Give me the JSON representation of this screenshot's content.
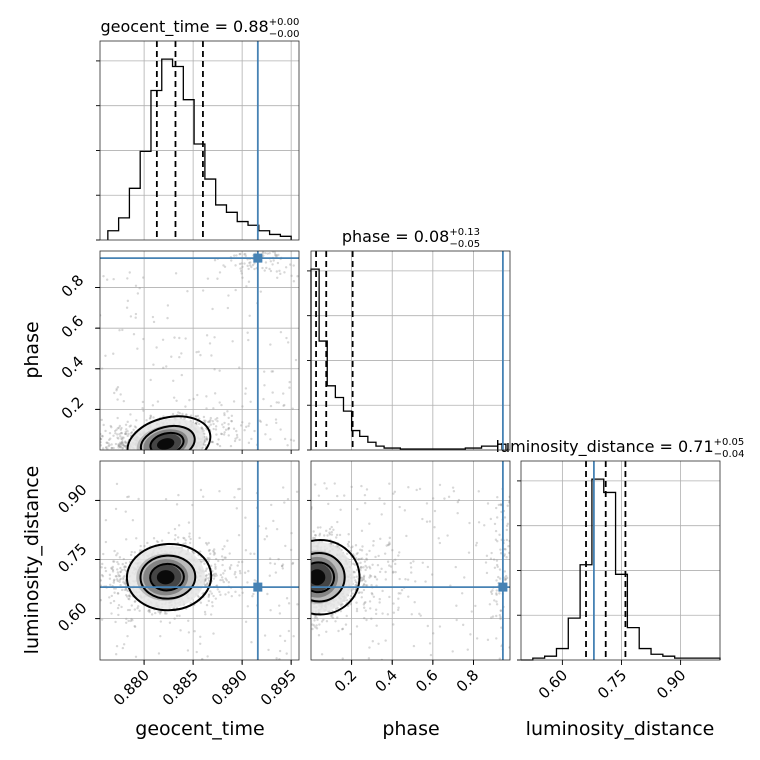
{
  "chart_data": {
    "type": "corner",
    "parameters": [
      "geocent_time",
      "phase",
      "luminosity_distance"
    ],
    "axes": {
      "geocent_time": {
        "label": "geocent_time",
        "range": [
          0.8755,
          0.8958
        ],
        "ticks": [
          0.88,
          0.885,
          0.89,
          0.895
        ],
        "tick_labels": [
          "0.880",
          "0.885",
          "0.890",
          "0.895"
        ]
      },
      "phase": {
        "label": "phase",
        "range": [
          0.0,
          0.98
        ],
        "ticks": [
          0.2,
          0.4,
          0.6,
          0.8
        ],
        "tick_labels": [
          "0.2",
          "0.4",
          "0.6",
          "0.8"
        ]
      },
      "luminosity_distance": {
        "label": "luminosity_distance",
        "range": [
          0.495,
          1.0
        ],
        "ticks": [
          0.6,
          0.75,
          0.9
        ],
        "tick_labels": [
          "0.60",
          "0.75",
          "0.90"
        ]
      }
    },
    "titles": [
      {
        "param": "geocent_time",
        "text": "geocent_time = 0.88",
        "plus": "+0.00",
        "minus": "−0.00"
      },
      {
        "param": "phase",
        "text": "phase = 0.08",
        "plus": "+0.13",
        "minus": "−0.05"
      },
      {
        "param": "luminosity_distance",
        "text": "luminosity_distance = 0.71",
        "plus": "+0.05",
        "minus": "−0.04"
      }
    ],
    "truths": {
      "geocent_time": 0.8916,
      "phase": 0.945,
      "luminosity_distance": 0.68
    },
    "quantiles": {
      "geocent_time": [
        0.8813,
        0.8832,
        0.886
      ],
      "phase": [
        0.025,
        0.075,
        0.205
      ],
      "luminosity_distance": [
        0.66,
        0.71,
        0.76
      ]
    },
    "histograms": {
      "geocent_time": {
        "bin_edges": [
          0.8763,
          0.8774,
          0.8785,
          0.8796,
          0.8807,
          0.8818,
          0.8829,
          0.884,
          0.8851,
          0.8862,
          0.8873,
          0.8884,
          0.8895,
          0.8906,
          0.8917,
          0.8928,
          0.8939,
          0.895
        ],
        "counts": [
          0.05,
          0.12,
          0.28,
          0.48,
          0.81,
          0.98,
          0.94,
          0.76,
          0.52,
          0.33,
          0.19,
          0.15,
          0.1,
          0.08,
          0.05,
          0.03,
          0.02
        ]
      },
      "phase": {
        "bin_edges": [
          0.0,
          0.04,
          0.08,
          0.12,
          0.16,
          0.2,
          0.24,
          0.28,
          0.32,
          0.36,
          0.4,
          0.44,
          0.48,
          0.52,
          0.56,
          0.6,
          0.64,
          0.68,
          0.72,
          0.76,
          0.8,
          0.84,
          0.88,
          0.92,
          0.96
        ],
        "counts": [
          0.93,
          0.56,
          0.33,
          0.27,
          0.2,
          0.1,
          0.07,
          0.04,
          0.02,
          0.01,
          0.01,
          0.005,
          0.005,
          0.005,
          0.005,
          0.005,
          0.005,
          0.005,
          0.005,
          0.01,
          0.01,
          0.02,
          0.02,
          0.03
        ]
      },
      "luminosity_distance": {
        "bin_edges": [
          0.495,
          0.525,
          0.555,
          0.585,
          0.615,
          0.645,
          0.675,
          0.705,
          0.735,
          0.765,
          0.795,
          0.825,
          0.855,
          0.885,
          0.915,
          0.945,
          0.975,
          1.0
        ],
        "counts": [
          0.0,
          0.01,
          0.02,
          0.06,
          0.22,
          0.5,
          0.95,
          0.88,
          0.45,
          0.17,
          0.06,
          0.03,
          0.02,
          0.01,
          0.01,
          0.01,
          0.01
        ]
      }
    },
    "density_2d": {
      "geocent_time_phase": {
        "peak": [
          0.8822,
          0.03
        ],
        "sigma": [
          0.002,
          0.06
        ],
        "rho": 0.55,
        "secondary": {
          "center": [
            0.8918,
            0.93
          ],
          "sigma": [
            0.0018,
            0.035
          ],
          "weight": 0.07
        }
      },
      "geocent_time_luminosity_distance": {
        "peak": [
          0.8822,
          0.705
        ],
        "sigma": [
          0.002,
          0.04
        ],
        "rho": 0.1
      },
      "phase_luminosity_distance": {
        "peak": [
          0.03,
          0.705
        ],
        "sigma": [
          0.09,
          0.045
        ],
        "rho": 0.0,
        "secondary": {
          "center": [
            0.94,
            0.72
          ],
          "sigma": [
            0.03,
            0.09
          ],
          "weight": 0.06
        }
      }
    },
    "grid": true
  }
}
